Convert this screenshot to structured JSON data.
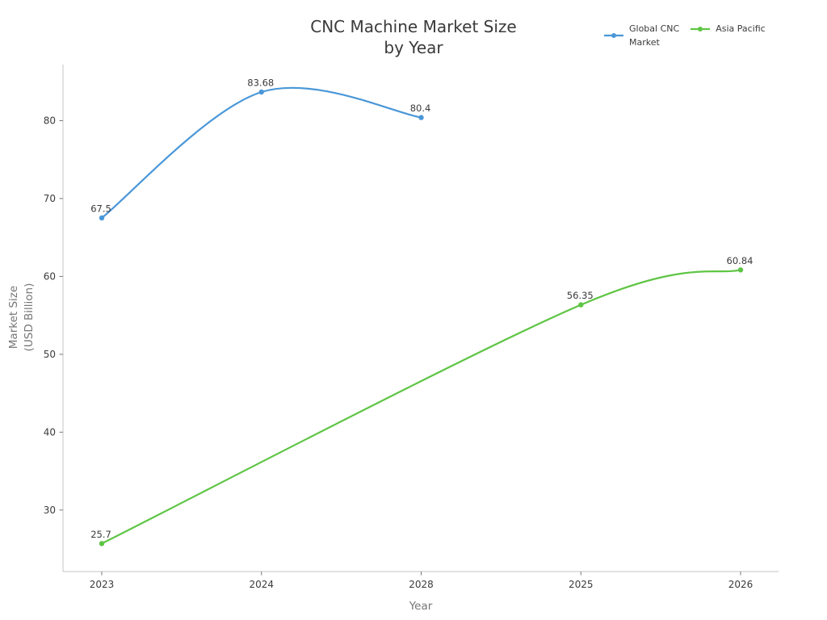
{
  "chart_data": {
    "type": "line",
    "smooth": true,
    "markers": true,
    "grid": false,
    "title_lines": [
      "CNC Machine Market Size",
      "by Year"
    ],
    "title": "CNC Machine Market Size by Year",
    "xlabel": "Year",
    "ylabel": "Market Size (USD Billion)",
    "ylabel_lines": [
      "Market Size",
      "(USD Billion)"
    ],
    "categories": [
      "2023",
      "2024",
      "2028",
      "2025",
      "2026"
    ],
    "yticks": [
      30,
      40,
      50,
      60,
      70,
      80
    ],
    "ylim": [
      22.1,
      87.2
    ],
    "legend_position": "top-right",
    "series": [
      {
        "name": "Global CNC Market",
        "legend_lines": [
          "Global CNC",
          "Market"
        ],
        "color": "#4a97d8",
        "values": [
          67.5,
          83.68,
          80.4,
          null,
          null
        ],
        "point_labels": [
          "67.5",
          "83.68",
          "80.4",
          null,
          null
        ]
      },
      {
        "name": "Asia Pacific",
        "legend_lines": [
          "Asia Pacific"
        ],
        "color": "#5ec544",
        "values": [
          25.7,
          null,
          null,
          56.35,
          60.84
        ],
        "point_labels": [
          "25.7",
          null,
          null,
          "56.35",
          "60.84"
        ]
      }
    ]
  },
  "style_colors": {
    "spine": "#c6c6c6",
    "tick_mark": "#777777",
    "tick_text": "#3b3b3b",
    "title_text": "#3a3a3a",
    "axis_label_text": "#767676",
    "background": "#ffffff"
  }
}
